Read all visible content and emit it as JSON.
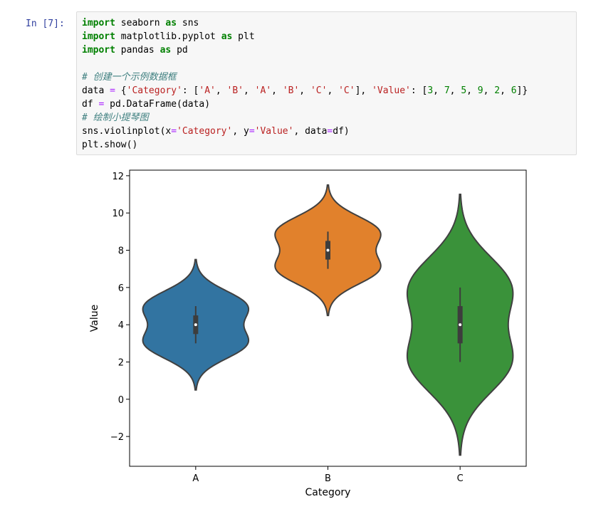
{
  "cell": {
    "prompt": "In  [7]:",
    "code_lines": [
      [
        {
          "t": "kw",
          "v": "import"
        },
        {
          "t": "tx",
          "v": " seaborn "
        },
        {
          "t": "kw",
          "v": "as"
        },
        {
          "t": "tx",
          "v": " sns"
        }
      ],
      [
        {
          "t": "kw",
          "v": "import"
        },
        {
          "t": "tx",
          "v": " matplotlib.pyplot "
        },
        {
          "t": "kw",
          "v": "as"
        },
        {
          "t": "tx",
          "v": " plt"
        }
      ],
      [
        {
          "t": "kw",
          "v": "import"
        },
        {
          "t": "tx",
          "v": " pandas "
        },
        {
          "t": "kw",
          "v": "as"
        },
        {
          "t": "tx",
          "v": " pd"
        }
      ],
      [],
      [
        {
          "t": "cm",
          "v": "# 创建一个示例数据框"
        }
      ],
      [
        {
          "t": "tx",
          "v": "data "
        },
        {
          "t": "op",
          "v": "="
        },
        {
          "t": "tx",
          "v": " {"
        },
        {
          "t": "str",
          "v": "'Category'"
        },
        {
          "t": "tx",
          "v": ": ["
        },
        {
          "t": "str",
          "v": "'A'"
        },
        {
          "t": "tx",
          "v": ", "
        },
        {
          "t": "str",
          "v": "'B'"
        },
        {
          "t": "tx",
          "v": ", "
        },
        {
          "t": "str",
          "v": "'A'"
        },
        {
          "t": "tx",
          "v": ", "
        },
        {
          "t": "str",
          "v": "'B'"
        },
        {
          "t": "tx",
          "v": ", "
        },
        {
          "t": "str",
          "v": "'C'"
        },
        {
          "t": "tx",
          "v": ", "
        },
        {
          "t": "str",
          "v": "'C'"
        },
        {
          "t": "tx",
          "v": "], "
        },
        {
          "t": "str",
          "v": "'Value'"
        },
        {
          "t": "tx",
          "v": ": ["
        },
        {
          "t": "num",
          "v": "3"
        },
        {
          "t": "tx",
          "v": ", "
        },
        {
          "t": "num",
          "v": "7"
        },
        {
          "t": "tx",
          "v": ", "
        },
        {
          "t": "num",
          "v": "5"
        },
        {
          "t": "tx",
          "v": ", "
        },
        {
          "t": "num",
          "v": "9"
        },
        {
          "t": "tx",
          "v": ", "
        },
        {
          "t": "num",
          "v": "2"
        },
        {
          "t": "tx",
          "v": ", "
        },
        {
          "t": "num",
          "v": "6"
        },
        {
          "t": "tx",
          "v": "]}"
        }
      ],
      [
        {
          "t": "tx",
          "v": "df "
        },
        {
          "t": "op",
          "v": "="
        },
        {
          "t": "tx",
          "v": " pd.DataFrame(data)"
        }
      ],
      [
        {
          "t": "cm",
          "v": "# 绘制小提琴图"
        }
      ],
      [
        {
          "t": "tx",
          "v": "sns.violinplot(x"
        },
        {
          "t": "op",
          "v": "="
        },
        {
          "t": "str",
          "v": "'Category'"
        },
        {
          "t": "tx",
          "v": ", y"
        },
        {
          "t": "op",
          "v": "="
        },
        {
          "t": "str",
          "v": "'Value'"
        },
        {
          "t": "tx",
          "v": ", data"
        },
        {
          "t": "op",
          "v": "="
        },
        {
          "t": "tx",
          "v": "df)"
        }
      ],
      [
        {
          "t": "tx",
          "v": "plt.show()"
        }
      ]
    ]
  },
  "colors": {
    "A": "#3274a1",
    "B": "#e1812c",
    "C": "#3a923a",
    "outline": "#404040"
  },
  "chart_data": {
    "type": "violin",
    "title": "",
    "xlabel": "Category",
    "ylabel": "Value",
    "categories": [
      "A",
      "B",
      "C"
    ],
    "ylim": [
      -3.6,
      12.3
    ],
    "yticks": [
      -2,
      0,
      2,
      4,
      6,
      8,
      10,
      12
    ],
    "ytick_labels": [
      "−2",
      "0",
      "2",
      "4",
      "6",
      "8",
      "10",
      "12"
    ],
    "grid": false,
    "raw_values": {
      "A": [
        3,
        5
      ],
      "B": [
        7,
        9
      ],
      "C": [
        2,
        6
      ]
    },
    "violins": [
      {
        "category": "A",
        "min": 0.5,
        "max": 7.5,
        "median": 4,
        "q1": 3.5,
        "q3": 4.5,
        "whisker_low": 3,
        "whisker_high": 5
      },
      {
        "category": "B",
        "min": 4.5,
        "max": 11.5,
        "median": 8,
        "q1": 7.5,
        "q3": 8.5,
        "whisker_low": 7,
        "whisker_high": 9
      },
      {
        "category": "C",
        "min": -3,
        "max": 11,
        "median": 4,
        "q1": 3,
        "q3": 5,
        "whisker_low": 2,
        "whisker_high": 6
      }
    ]
  }
}
